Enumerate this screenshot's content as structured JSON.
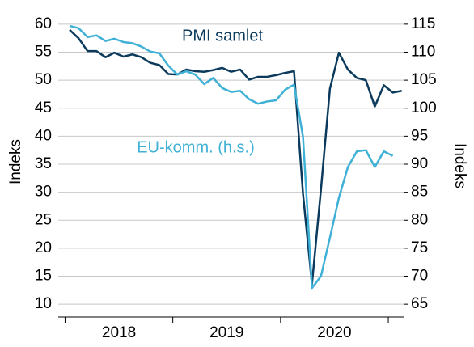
{
  "chart_data": {
    "type": "line",
    "categories": [
      null,
      null,
      null,
      null,
      null,
      null,
      null,
      null,
      null,
      null,
      null,
      null,
      null,
      null,
      null,
      null,
      null,
      null,
      null,
      null,
      null,
      null,
      null,
      null,
      null,
      null,
      null,
      null,
      null,
      null,
      null,
      null,
      null,
      null,
      null,
      null,
      null,
      null
    ],
    "year_labels": [
      "2018",
      "2019",
      "2020"
    ],
    "ylabel": "Indeks",
    "y2label": "Indeks",
    "ylim": [
      8,
      62
    ],
    "yticks": [
      10,
      15,
      20,
      25,
      30,
      35,
      40,
      45,
      50,
      55,
      60
    ],
    "y2lim": [
      63,
      117
    ],
    "y2ticks": [
      65,
      70,
      75,
      80,
      85,
      90,
      95,
      100,
      105,
      110,
      115
    ],
    "grid": true,
    "annotations": [
      "PMI samlet",
      "EU-komm. (h.s.)"
    ],
    "series": [
      {
        "name": "PMI samlet",
        "color": "#0b3a5c",
        "values": [
          59,
          57.5,
          55.2,
          55.2,
          54.1,
          54.9,
          54.2,
          54.6,
          54.1,
          53.1,
          52.7,
          51.1,
          51.0,
          51.9,
          51.6,
          51.5,
          51.8,
          52.2,
          51.5,
          51.9,
          50.1,
          50.6,
          50.6,
          50.9,
          51.3,
          51.6,
          29.7,
          13.6,
          30.5,
          48.5,
          54.9,
          51.9,
          50.4,
          50.0,
          45.3,
          49.1,
          47.8,
          48.1
        ]
      },
      {
        "name": "EU-komm. (h.s.)",
        "color": "#3fb1d6",
        "axis": "y2",
        "values": [
          114.7,
          114.3,
          112.7,
          113.0,
          112.0,
          112.4,
          111.8,
          111.6,
          111.0,
          110.1,
          109.8,
          107.6,
          106.0,
          106.6,
          106.0,
          104.3,
          105.4,
          103.6,
          102.9,
          103.1,
          101.6,
          100.8,
          101.2,
          101.4,
          103.3,
          104.2,
          94.9,
          67.9,
          70.0,
          76.9,
          84.0,
          89.5,
          92.3,
          92.5,
          89.5,
          92.3,
          91.5,
          null
        ]
      }
    ]
  }
}
